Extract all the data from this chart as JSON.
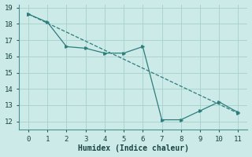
{
  "xlabel": "Humidex (Indice chaleur)",
  "bg_color": "#cceae7",
  "grid_color": "#aad4d0",
  "line_color": "#2e7d7d",
  "xlim": [
    -0.5,
    11.5
  ],
  "ylim": [
    11.5,
    19.2
  ],
  "yticks": [
    12,
    13,
    14,
    15,
    16,
    17,
    18,
    19
  ],
  "xticks": [
    0,
    1,
    2,
    3,
    4,
    5,
    6,
    7,
    8,
    9,
    10,
    11
  ],
  "line1_x": [
    0,
    1,
    2,
    3,
    4,
    5,
    6,
    7,
    8,
    9,
    10,
    11
  ],
  "line1_y": [
    18.6,
    18.1,
    16.6,
    16.5,
    16.2,
    16.2,
    16.6,
    12.1,
    12.1,
    12.65,
    13.2,
    12.55
  ],
  "line2_x": [
    0,
    11
  ],
  "line2_y": [
    18.6,
    12.5
  ]
}
